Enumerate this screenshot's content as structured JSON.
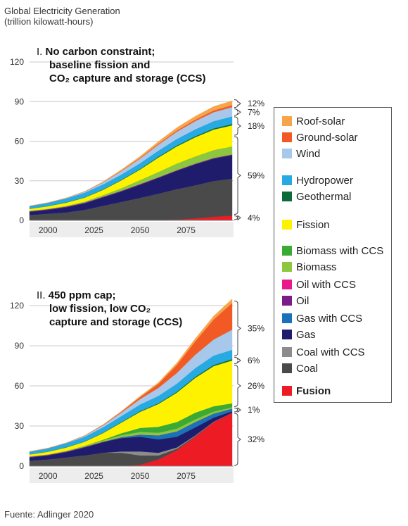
{
  "title_line1": "Global Electricity Generation",
  "title_line2": "(trillion kilowatt-hours)",
  "source": "Fuente: Adlinger 2020",
  "colors": {
    "coal": "#4a4a4a",
    "coal_ccs": "#8c8c8c",
    "gas": "#1f1d6b",
    "gas_ccs": "#1a73b8",
    "oil": "#7a1c8a",
    "oil_ccs": "#e8198b",
    "biomass": "#8dc63f",
    "biomass_ccs": "#3aaa35",
    "fission": "#fff200",
    "geothermal": "#0d6b3a",
    "hydropower": "#27a9e1",
    "wind": "#a7c8ea",
    "ground_solar": "#f15a24",
    "roof_solar": "#f7a54a",
    "fusion": "#ed1c24"
  },
  "legend": [
    {
      "label": "Roof-solar",
      "key": "roof_solar",
      "bold": false
    },
    {
      "label": "Ground-solar",
      "key": "ground_solar",
      "bold": false
    },
    {
      "label": "Wind",
      "key": "wind",
      "bold": false
    },
    {
      "label": "Hydropower",
      "key": "hydropower",
      "bold": false
    },
    {
      "label": "Geothermal",
      "key": "geothermal",
      "bold": false
    },
    {
      "label": "Fission",
      "key": "fission",
      "bold": false
    },
    {
      "label": "Biomass with CCS",
      "key": "biomass_ccs",
      "bold": false
    },
    {
      "label": "Biomass",
      "key": "biomass",
      "bold": false
    },
    {
      "label": "Oil with CCS",
      "key": "oil_ccs",
      "bold": false
    },
    {
      "label": "Oil",
      "key": "oil",
      "bold": false
    },
    {
      "label": "Gas with CCS",
      "key": "gas_ccs",
      "bold": false
    },
    {
      "label": "Gas",
      "key": "gas",
      "bold": false
    },
    {
      "label": "Coal with CCS",
      "key": "coal_ccs",
      "bold": false
    },
    {
      "label": "Coal",
      "key": "coal",
      "bold": false
    },
    {
      "label": "Fusion",
      "key": "fusion",
      "bold": true
    }
  ],
  "chart_data": [
    {
      "type": "area",
      "title_prefix": "I.",
      "title_lines": [
        "No carbon constraint;",
        "baseline fission and",
        "CO₂ capture and storage (CCS)"
      ],
      "ylim": [
        0,
        120
      ],
      "yticks": [
        "0",
        "30",
        "60",
        "90",
        "120"
      ],
      "xlim": [
        1990,
        2100
      ],
      "xticks": [
        "2000",
        "2025",
        "2050",
        "2075"
      ],
      "x": [
        1990,
        2000,
        2010,
        2020,
        2030,
        2040,
        2050,
        2060,
        2070,
        2080,
        2090,
        2100
      ],
      "series": [
        {
          "key": "fusion",
          "values": [
            0,
            0,
            0,
            0,
            0,
            0,
            0,
            0.2,
            0.6,
            1.5,
            2.8,
            3.5
          ]
        },
        {
          "key": "coal",
          "values": [
            4,
            5,
            6,
            8,
            11,
            14,
            17,
            20,
            23,
            25,
            27,
            28
          ]
        },
        {
          "key": "coal_ccs",
          "values": [
            0,
            0,
            0,
            0,
            0,
            0,
            0,
            0,
            0,
            0,
            0,
            0
          ]
        },
        {
          "key": "gas",
          "values": [
            2.5,
            3,
            4,
            5,
            6.5,
            8,
            10,
            12,
            14,
            16,
            17,
            18
          ]
        },
        {
          "key": "gas_ccs",
          "values": [
            0,
            0,
            0,
            0,
            0,
            0,
            0,
            0,
            0,
            0,
            0,
            0
          ]
        },
        {
          "key": "oil",
          "values": [
            0.5,
            0.5,
            0.5,
            0.5,
            0.5,
            0.5,
            0.5,
            0.5,
            0.5,
            0.5,
            0.5,
            0.5
          ]
        },
        {
          "key": "oil_ccs",
          "values": [
            0,
            0,
            0,
            0,
            0,
            0,
            0,
            0,
            0,
            0,
            0,
            0
          ]
        },
        {
          "key": "biomass",
          "values": [
            0.3,
            0.3,
            0.5,
            0.8,
            1.2,
            2,
            3,
            4,
            5,
            5.5,
            6,
            6
          ]
        },
        {
          "key": "biomass_ccs",
          "values": [
            0,
            0,
            0,
            0,
            0,
            0,
            0,
            0,
            0,
            0,
            0,
            0
          ]
        },
        {
          "key": "fission",
          "values": [
            1.5,
            2,
            2.5,
            3,
            4,
            6,
            8,
            11,
            13,
            14.5,
            15.5,
            16
          ]
        },
        {
          "key": "geothermal",
          "values": [
            0.1,
            0.1,
            0.2,
            0.2,
            0.3,
            0.4,
            0.5,
            0.6,
            0.7,
            0.8,
            0.9,
            1
          ]
        },
        {
          "key": "hydropower",
          "values": [
            2,
            2.5,
            3,
            3.5,
            3.8,
            4,
            4.3,
            4.6,
            4.9,
            5.2,
            5.5,
            5.8
          ]
        },
        {
          "key": "wind",
          "values": [
            0,
            0,
            0.3,
            0.8,
            1.5,
            2.5,
            3.5,
            4.5,
            5.5,
            6.2,
            6.8,
            7
          ]
        },
        {
          "key": "ground_solar",
          "values": [
            0,
            0,
            0,
            0.1,
            0.2,
            0.3,
            0.5,
            0.7,
            0.9,
            1.1,
            1.3,
            1.5
          ]
        },
        {
          "key": "roof_solar",
          "values": [
            0,
            0,
            0,
            0.1,
            0.4,
            0.8,
            1.2,
            1.7,
            2.2,
            2.6,
            3,
            3.3
          ]
        }
      ],
      "percent_labels": [
        {
          "text": "12%",
          "range": [
            85,
            92
          ]
        },
        {
          "text": "7%",
          "range": [
            79,
            85
          ]
        },
        {
          "text": "18%",
          "range": [
            64,
            79
          ]
        },
        {
          "text": "59%",
          "range": [
            4,
            64
          ]
        },
        {
          "text": "4%",
          "range": [
            0,
            4
          ]
        }
      ]
    },
    {
      "type": "area",
      "title_prefix": "II.",
      "title_lines": [
        "450 ppm cap;",
        "low fission, low CO₂",
        "capture and storage (CCS)"
      ],
      "ylim": [
        0,
        120
      ],
      "yticks": [
        "0",
        "30",
        "60",
        "90",
        "120"
      ],
      "xlim": [
        1990,
        2100
      ],
      "xticks": [
        "2000",
        "2025",
        "2050",
        "2075"
      ],
      "x": [
        1990,
        2000,
        2010,
        2020,
        2030,
        2040,
        2050,
        2060,
        2070,
        2080,
        2090,
        2100
      ],
      "series": [
        {
          "key": "fusion",
          "values": [
            0,
            0,
            0,
            0,
            0,
            0,
            1,
            5,
            12,
            22,
            33,
            40
          ]
        },
        {
          "key": "coal",
          "values": [
            4,
            5,
            6.5,
            8,
            10,
            10,
            7,
            3,
            1,
            0.5,
            0,
            0
          ]
        },
        {
          "key": "coal_ccs",
          "values": [
            0,
            0,
            0,
            0,
            0,
            1,
            3,
            2,
            1,
            0.5,
            0.3,
            0
          ]
        },
        {
          "key": "gas",
          "values": [
            2.5,
            3,
            4,
            6,
            8,
            10,
            11,
            10,
            8,
            6,
            3,
            1
          ]
        },
        {
          "key": "gas_ccs",
          "values": [
            0,
            0,
            0,
            0,
            0,
            0.5,
            1.5,
            3,
            4,
            4,
            3,
            2
          ]
        },
        {
          "key": "oil",
          "values": [
            0.5,
            0.5,
            0.5,
            0.5,
            0.3,
            0.2,
            0.1,
            0,
            0,
            0,
            0,
            0
          ]
        },
        {
          "key": "oil_ccs",
          "values": [
            0,
            0,
            0,
            0,
            0,
            0,
            0,
            0,
            0,
            0,
            0,
            0
          ]
        },
        {
          "key": "biomass",
          "values": [
            0.3,
            0.3,
            0.5,
            0.8,
            1,
            1.5,
            2,
            2,
            2,
            2,
            1.5,
            1
          ]
        },
        {
          "key": "biomass_ccs",
          "values": [
            0,
            0,
            0,
            0,
            0.5,
            1.5,
            3,
            4.5,
            5,
            5,
            4,
            3
          ]
        },
        {
          "key": "fission",
          "values": [
            1.5,
            2,
            2.5,
            3,
            5,
            8,
            12,
            17,
            22,
            26,
            30,
            32
          ]
        },
        {
          "key": "geothermal",
          "values": [
            0.1,
            0.1,
            0.2,
            0.2,
            0.3,
            0.4,
            0.5,
            0.6,
            0.7,
            0.8,
            0.9,
            1
          ]
        },
        {
          "key": "hydropower",
          "values": [
            2,
            2.5,
            3,
            3.5,
            4,
            4.5,
            5,
            5.5,
            6,
            6.5,
            7,
            7
          ]
        },
        {
          "key": "wind",
          "values": [
            0,
            0,
            0.3,
            0.8,
            1.5,
            2.5,
            4,
            6,
            8,
            10,
            12,
            15
          ]
        },
        {
          "key": "ground_solar",
          "values": [
            0,
            0,
            0,
            0.1,
            0.3,
            0.7,
            1.5,
            3,
            6,
            10,
            15,
            20
          ]
        },
        {
          "key": "roof_solar",
          "values": [
            0,
            0,
            0,
            0.1,
            0.2,
            0.4,
            0.7,
            1,
            1.5,
            2,
            2.5,
            3
          ]
        }
      ],
      "percent_labels": [
        {
          "text": "35%",
          "range": [
            82,
            124
          ]
        },
        {
          "text": "6%",
          "range": [
            76,
            82
          ]
        },
        {
          "text": "26%",
          "range": [
            44,
            76
          ]
        },
        {
          "text": "1%",
          "range": [
            40,
            44
          ]
        },
        {
          "text": "32%",
          "range": [
            0,
            40
          ]
        }
      ]
    }
  ]
}
